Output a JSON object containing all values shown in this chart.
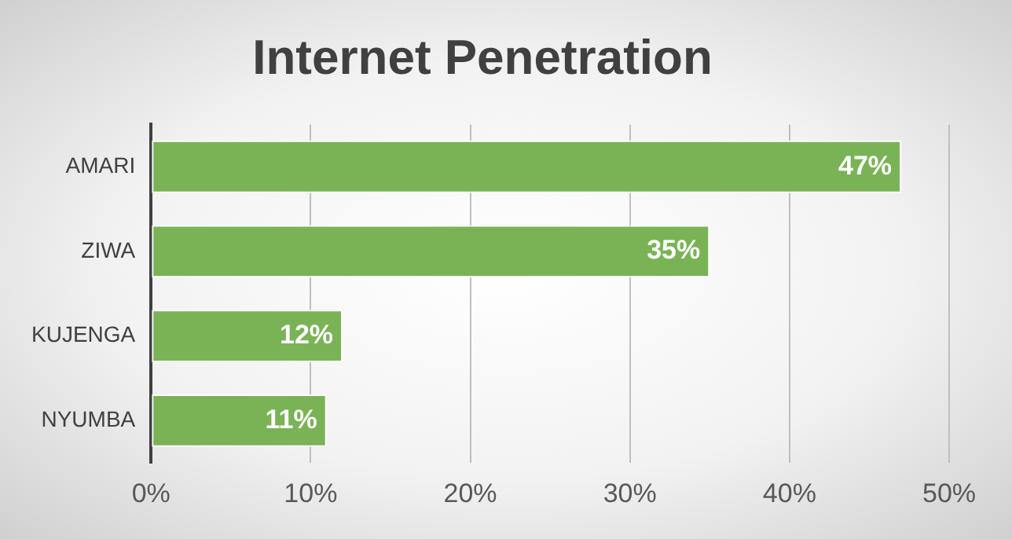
{
  "chart_data": {
    "type": "bar",
    "orientation": "horizontal",
    "title": "Internet Penetration",
    "categories": [
      "AMARI",
      "ZIWA",
      "KUJENGA",
      "NYUMBA"
    ],
    "values": [
      47,
      35,
      12,
      11
    ],
    "value_labels": [
      "47%",
      "35%",
      "12%",
      "11%"
    ],
    "color": "#7ab356",
    "xlim": [
      0,
      50
    ],
    "xticks": [
      {
        "value": 0,
        "label": "0%"
      },
      {
        "value": 10,
        "label": "10%"
      },
      {
        "value": 20,
        "label": "20%"
      },
      {
        "value": 30,
        "label": "30%"
      },
      {
        "value": 40,
        "label": "40%"
      },
      {
        "value": 50,
        "label": "50%"
      }
    ],
    "grid": "x",
    "legend": false
  }
}
